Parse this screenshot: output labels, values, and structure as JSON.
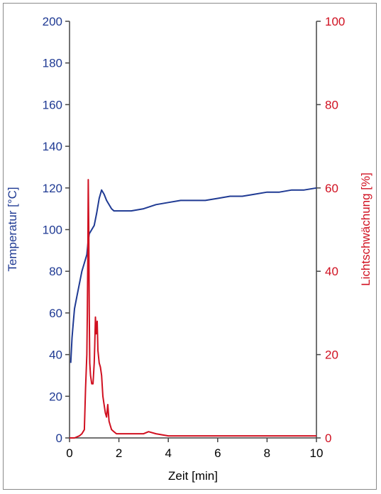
{
  "chart_data": {
    "type": "line",
    "xlabel": "Zeit [min]",
    "ylabel_left": "Temperatur [°C]",
    "ylabel_right": "Lichtschwächung [%]",
    "xlim": [
      0,
      10
    ],
    "ylim_left": [
      0,
      200
    ],
    "ylim_right": [
      0,
      100
    ],
    "x_ticks": [
      "0",
      "2",
      "4",
      "6",
      "8",
      "10"
    ],
    "y_left_ticks": [
      "0",
      "20",
      "40",
      "60",
      "80",
      "100",
      "120",
      "140",
      "160",
      "180",
      "200"
    ],
    "y_right_ticks": [
      "0",
      "20",
      "40",
      "60",
      "80",
      "100"
    ],
    "grid": false,
    "colors": {
      "temperature": "#1f3a93",
      "light": "#d01020"
    },
    "series": [
      {
        "axis": "left",
        "x": [
          0.05,
          0.1,
          0.15,
          0.2,
          0.3,
          0.4,
          0.5,
          0.6,
          0.7,
          0.75,
          0.8,
          0.9,
          1.0,
          1.1,
          1.2,
          1.3,
          1.4,
          1.5,
          1.6,
          1.7,
          1.8,
          1.9,
          2.0,
          2.2,
          2.5,
          3.0,
          3.5,
          4.0,
          4.5,
          5.0,
          5.5,
          6.0,
          6.5,
          7.0,
          7.5,
          8.0,
          8.5,
          9.0,
          9.5,
          10.0
        ],
        "y": [
          36,
          48,
          55,
          62,
          68,
          74,
          80,
          84,
          88,
          94,
          98,
          100,
          102,
          108,
          115,
          119,
          117,
          114,
          112,
          110,
          109,
          109,
          109,
          109,
          109,
          110,
          112,
          113,
          114,
          114,
          114,
          115,
          116,
          116,
          117,
          118,
          118,
          119,
          119,
          120
        ]
      },
      {
        "axis": "right",
        "x": [
          0,
          0.2,
          0.4,
          0.5,
          0.6,
          0.65,
          0.7,
          0.72,
          0.74,
          0.76,
          0.78,
          0.8,
          0.82,
          0.85,
          0.9,
          0.95,
          1.0,
          1.02,
          1.05,
          1.08,
          1.1,
          1.12,
          1.15,
          1.2,
          1.25,
          1.3,
          1.35,
          1.4,
          1.45,
          1.5,
          1.55,
          1.6,
          1.65,
          1.7,
          1.8,
          1.9,
          2.0,
          2.5,
          3.0,
          3.2,
          3.5,
          4.0,
          5.0,
          6.0,
          7.0,
          8.0,
          9.0,
          10.0
        ],
        "y": [
          0,
          0,
          0.5,
          1,
          2,
          12,
          20,
          30,
          44,
          62,
          50,
          30,
          18,
          15,
          13,
          13,
          18,
          22,
          29,
          25,
          26,
          28,
          21,
          18,
          17,
          15,
          10,
          8,
          6,
          5,
          8,
          4,
          3,
          2,
          1.5,
          1,
          1,
          1,
          1,
          1.5,
          1,
          0.5,
          0.5,
          0.5,
          0.5,
          0.5,
          0.5,
          0.5
        ]
      }
    ]
  }
}
